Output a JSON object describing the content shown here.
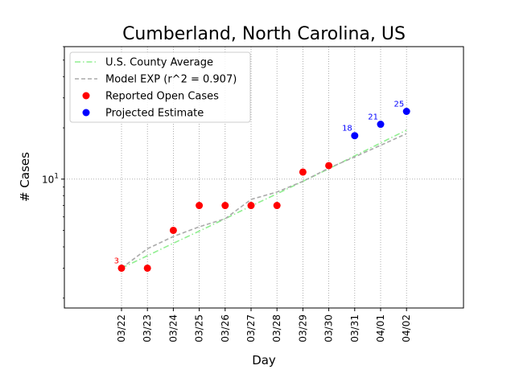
{
  "colors": {
    "reported": "#ff0000",
    "projected": "#0000ff",
    "county_avg": "#90ee90",
    "model": "#aaaaaa"
  },
  "chart_data": {
    "type": "scatter",
    "title": "Cumberland, North Carolina, US",
    "xlabel": "Day",
    "ylabel": "# Cases",
    "yscale": "log",
    "ylim": [
      1.75,
      60
    ],
    "yticks": [
      {
        "value": 10,
        "label": "10^1",
        "base": "10",
        "exp": "1"
      }
    ],
    "grid": true,
    "legend_position": "top-left",
    "x": [
      "03/22",
      "03/23",
      "03/24",
      "03/25",
      "03/26",
      "03/27",
      "03/28",
      "03/29",
      "03/30",
      "03/31",
      "04/01",
      "04/02"
    ],
    "series": [
      {
        "name": "U.S. County Average",
        "style": "dash-dot line",
        "values": [
          3.0,
          3.55,
          4.2,
          4.95,
          5.85,
          6.95,
          8.2,
          9.7,
          11.5,
          13.7,
          16.3,
          19.4
        ]
      },
      {
        "name": "Model EXP (r^2 = 0.907)",
        "style": "dashed line",
        "values": [
          3.0,
          3.9,
          4.6,
          5.25,
          5.85,
          7.6,
          8.4,
          9.7,
          11.6,
          13.5,
          15.8,
          18.5
        ]
      },
      {
        "name": "Reported Open Cases",
        "style": "markers",
        "values": [
          3,
          3,
          5,
          7,
          7,
          7,
          7,
          11,
          12,
          null,
          null,
          null
        ]
      },
      {
        "name": "Projected Estimate",
        "style": "markers",
        "values": [
          null,
          null,
          null,
          null,
          null,
          null,
          null,
          null,
          null,
          18,
          21,
          25
        ]
      }
    ],
    "annotations": [
      {
        "x": "03/22",
        "y": 3,
        "text": "3",
        "series": "Reported Open Cases"
      },
      {
        "x": "03/31",
        "y": 18,
        "text": "18",
        "series": "Projected Estimate"
      },
      {
        "x": "04/01",
        "y": 21,
        "text": "21",
        "series": "Projected Estimate"
      },
      {
        "x": "04/02",
        "y": 25,
        "text": "25",
        "series": "Projected Estimate"
      }
    ]
  }
}
